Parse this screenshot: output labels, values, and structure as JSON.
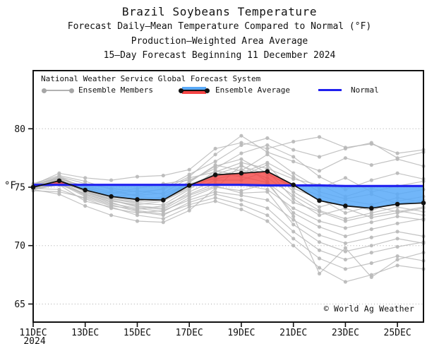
{
  "header": {
    "title_line1": "Brazil Soybeans Temperature",
    "title_line2": "Forecast Daily–Mean Temperature Compared to Normal (°F)",
    "title_line3": "Production–Weighted Area Average",
    "title_line4": "15–Day Forecast Beginning 11 December 2024"
  },
  "legend": {
    "source_line": "National Weather Service Global Forecast System",
    "members_label": "Ensemble Members",
    "average_label": "Ensemble Average",
    "normal_label": "Normal"
  },
  "footer": {
    "copyright": "© World Ag Weather"
  },
  "chart_data": {
    "type": "line",
    "title": "Brazil Soybeans Temperature",
    "subtitle": "Forecast Daily-Mean Temperature Compared to Normal (°F), Production-Weighted Area Average, 15-Day Forecast Beginning 11 December 2024",
    "y_unit": "°F",
    "ylabel": "°F",
    "xlabel": "",
    "grid": "horizontal-dotted",
    "legend_position": "top-left-inside",
    "ylim": [
      63.5,
      85
    ],
    "y_ticks": [
      80,
      75,
      70,
      65
    ],
    "x_dates": [
      "11DEC",
      "12DEC",
      "13DEC",
      "14DEC",
      "15DEC",
      "16DEC",
      "17DEC",
      "18DEC",
      "19DEC",
      "20DEC",
      "21DEC",
      "22DEC",
      "23DEC",
      "24DEC",
      "25DEC",
      "26DEC"
    ],
    "x_tick_labels": [
      "11DEC",
      "13DEC",
      "15DEC",
      "17DEC",
      "19DEC",
      "21DEC",
      "23DEC",
      "25DEC"
    ],
    "x_tick_day_indices": [
      0,
      2,
      4,
      6,
      8,
      10,
      12,
      14
    ],
    "year_label": "2024",
    "series": {
      "ensemble_average": [
        75.0,
        75.55,
        74.75,
        74.2,
        73.95,
        73.9,
        75.15,
        76.05,
        76.2,
        76.35,
        75.2,
        73.85,
        73.4,
        73.2,
        73.55,
        73.65
      ],
      "normal": [
        75.2,
        75.2,
        75.2,
        75.2,
        75.2,
        75.2,
        75.2,
        75.2,
        75.2,
        75.15,
        75.15,
        75.15,
        75.1,
        75.1,
        75.1,
        75.1
      ],
      "ensemble_members": [
        [
          75.2,
          76.2,
          75.8,
          75.6,
          75.9,
          76.0,
          76.5,
          78.3,
          78.8,
          78.3,
          78.9,
          79.3,
          78.4,
          78.7,
          77.9,
          78.2
        ],
        [
          75.1,
          75.9,
          75.3,
          74.9,
          74.6,
          74.8,
          75.9,
          77.8,
          79.4,
          78.0,
          77.2,
          76.4,
          77.5,
          76.9,
          77.4,
          76.8
        ],
        [
          74.9,
          75.6,
          74.9,
          74.5,
          74.9,
          75.3,
          75.6,
          76.6,
          77.9,
          78.6,
          77.6,
          75.9,
          74.8,
          75.6,
          76.2,
          75.7
        ],
        [
          75.3,
          76.0,
          75.5,
          74.8,
          74.2,
          74.0,
          75.4,
          76.9,
          76.4,
          77.8,
          76.2,
          74.9,
          75.8,
          74.6,
          75.1,
          75.5
        ],
        [
          75.0,
          75.7,
          75.1,
          74.6,
          74.3,
          74.5,
          75.8,
          76.3,
          77.1,
          76.6,
          75.7,
          75.2,
          74.2,
          74.9,
          74.4,
          74.8
        ],
        [
          74.8,
          75.4,
          74.8,
          74.1,
          73.8,
          74.2,
          75.2,
          76.1,
          76.8,
          76.1,
          75.1,
          74.3,
          73.6,
          73.0,
          73.8,
          74.2
        ],
        [
          75.1,
          75.8,
          75.0,
          74.4,
          74.7,
          74.4,
          75.3,
          75.7,
          76.2,
          77.1,
          75.9,
          74.6,
          74.0,
          74.4,
          73.6,
          73.9
        ],
        [
          74.9,
          75.5,
          74.6,
          74.0,
          73.6,
          73.5,
          74.8,
          76.4,
          76.0,
          76.9,
          74.6,
          73.3,
          73.9,
          73.5,
          74.1,
          73.7
        ],
        [
          75.2,
          75.9,
          74.9,
          74.3,
          73.9,
          74.1,
          75.5,
          76.8,
          77.4,
          76.2,
          74.9,
          74.0,
          72.8,
          73.4,
          72.9,
          73.3
        ],
        [
          75.0,
          75.3,
          74.4,
          73.8,
          73.5,
          73.8,
          74.9,
          75.9,
          76.5,
          75.8,
          74.3,
          73.0,
          72.3,
          72.8,
          73.3,
          72.9
        ],
        [
          74.8,
          75.2,
          74.5,
          73.9,
          73.4,
          73.2,
          74.6,
          75.6,
          75.6,
          76.4,
          74.0,
          72.6,
          73.2,
          72.4,
          72.8,
          73.2
        ],
        [
          75.1,
          75.6,
          74.7,
          74.0,
          73.7,
          73.9,
          75.0,
          76.2,
          75.9,
          75.4,
          73.7,
          72.9,
          72.1,
          72.6,
          73.0,
          72.6
        ],
        [
          74.7,
          74.6,
          74.1,
          73.4,
          73.1,
          73.4,
          74.4,
          75.3,
          75.2,
          74.8,
          73.2,
          72.1,
          71.5,
          72.0,
          72.5,
          72.2
        ],
        [
          75.0,
          75.4,
          74.3,
          73.6,
          73.2,
          72.9,
          74.1,
          75.0,
          74.7,
          75.3,
          72.8,
          71.6,
          70.8,
          71.4,
          71.9,
          72.3
        ],
        [
          74.9,
          74.8,
          74.0,
          73.2,
          72.8,
          73.0,
          73.9,
          74.6,
          74.3,
          73.9,
          72.2,
          70.9,
          70.2,
          70.7,
          71.2,
          70.8
        ],
        [
          75.2,
          75.7,
          74.6,
          73.9,
          73.3,
          73.1,
          74.3,
          75.1,
          74.5,
          74.6,
          71.8,
          70.3,
          69.5,
          70.0,
          70.6,
          70.2
        ],
        [
          74.8,
          75.3,
          74.2,
          73.5,
          72.9,
          72.6,
          73.7,
          74.4,
          73.9,
          73.2,
          71.2,
          69.6,
          68.8,
          69.4,
          69.9,
          70.3
        ],
        [
          75.0,
          75.5,
          74.4,
          73.7,
          73.0,
          72.7,
          73.5,
          74.1,
          73.5,
          72.6,
          70.6,
          68.9,
          68.0,
          68.5,
          69.1,
          68.7
        ],
        [
          74.9,
          75.2,
          73.8,
          73.3,
          72.6,
          72.3,
          73.3,
          73.8,
          73.1,
          72.1,
          70.0,
          68.1,
          66.9,
          67.5,
          68.3,
          68.0
        ],
        [
          75.1,
          75.8,
          74.8,
          74.2,
          74.4,
          74.9,
          76.1,
          77.2,
          78.6,
          79.2,
          78.2,
          77.6,
          78.3,
          78.8,
          77.5,
          78.0
        ],
        [
          74.8,
          74.4,
          73.4,
          72.6,
          72.1,
          72.0,
          73.0,
          74.9,
          76.9,
          75.5,
          72.5,
          67.6,
          69.8,
          67.3,
          68.8,
          69.4
        ]
      ]
    },
    "colors": {
      "normal_line": "#2020ee",
      "average_line": "#111111",
      "member_line": "#b9b9b9",
      "warm_fill": "#f54545",
      "cool_fill": "#58a9f8",
      "gridline": "#a8a8a8"
    }
  }
}
